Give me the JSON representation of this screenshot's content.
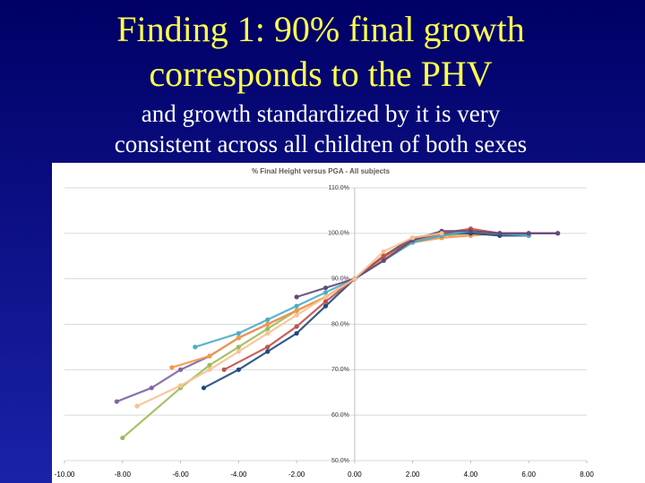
{
  "slide": {
    "title": [
      "Finding 1: 90% final growth",
      "corresponds to the PHV"
    ],
    "subtitle": [
      "and growth standardized by it is very",
      "consistent across all children of both sexes"
    ]
  },
  "chart_data": {
    "type": "line",
    "title": "% Final Height versus PGA - All subjects",
    "xlim": [
      -10,
      8
    ],
    "xticks": [
      {
        "value": -10,
        "label": "-10.00"
      },
      {
        "value": -8,
        "label": "-8.00"
      },
      {
        "value": -6,
        "label": "-6.00"
      },
      {
        "value": -4,
        "label": "-4.00"
      },
      {
        "value": -2,
        "label": "-2.00"
      },
      {
        "value": 0,
        "label": "0.00"
      },
      {
        "value": 2,
        "label": "2.00"
      },
      {
        "value": 4,
        "label": "4.00"
      },
      {
        "value": 6,
        "label": "6.00"
      },
      {
        "value": 8,
        "label": "8.00"
      }
    ],
    "ylim": [
      50,
      110
    ],
    "yticks": [
      {
        "value": 50,
        "label": "50.0%"
      },
      {
        "value": 60,
        "label": "60.0%"
      },
      {
        "value": 70,
        "label": "70.0%"
      },
      {
        "value": 80,
        "label": "80.0%"
      },
      {
        "value": 90,
        "label": "90.0%"
      },
      {
        "value": 100,
        "label": "100.0%"
      },
      {
        "value": 110,
        "label": "110.0%"
      }
    ],
    "grid": true,
    "series": [
      {
        "color": "#8064a2",
        "x": [
          -8.2,
          -7,
          -6,
          -5,
          -4,
          -3,
          -2,
          -1,
          0,
          1,
          2,
          3,
          4,
          5,
          6,
          7
        ],
        "values": [
          63,
          66,
          70,
          73,
          77,
          80,
          83,
          86,
          90,
          95,
          98,
          99.5,
          100,
          100,
          100,
          100
        ]
      },
      {
        "color": "#9bbb59",
        "x": [
          -8,
          -6,
          -5,
          -4,
          -3,
          -2,
          -1,
          0,
          1,
          2,
          3,
          4,
          5
        ],
        "values": [
          55,
          66,
          71,
          75,
          79,
          83,
          86,
          90,
          95,
          98.5,
          99.5,
          100,
          100
        ]
      },
      {
        "color": "#f79646",
        "x": [
          -6.3,
          -5,
          -4,
          -3,
          -2,
          -1,
          0,
          1,
          2,
          3,
          4,
          5,
          6
        ],
        "values": [
          70.5,
          73,
          77,
          80,
          83,
          86,
          90,
          94.5,
          98,
          99,
          99.5,
          100,
          100
        ]
      },
      {
        "color": "#1f497d",
        "x": [
          -5.2,
          -4,
          -3,
          -2,
          -1,
          0,
          1,
          2,
          3,
          4,
          5,
          6
        ],
        "values": [
          66,
          70,
          74,
          78,
          84,
          90,
          95,
          99,
          100,
          100,
          99.5,
          99.5
        ]
      },
      {
        "color": "#4bacc6",
        "x": [
          -5.5,
          -4,
          -3,
          -2,
          -1,
          0,
          1,
          2,
          3,
          4,
          5,
          6
        ],
        "values": [
          75,
          78,
          81,
          84,
          87,
          90,
          94,
          98,
          99.5,
          100.5,
          100,
          99.5
        ]
      },
      {
        "color": "#c0504d",
        "x": [
          -4.5,
          -3,
          -2,
          -1,
          0,
          1,
          2,
          3,
          4,
          5,
          6,
          7
        ],
        "values": [
          70,
          75,
          79.5,
          85,
          90,
          95,
          98.5,
          100,
          101,
          100,
          100,
          100
        ]
      },
      {
        "color": "#604a7b",
        "x": [
          -2,
          -1,
          0,
          1,
          2,
          3,
          4,
          5,
          6,
          7
        ],
        "values": [
          86,
          88,
          90,
          94,
          98.5,
          100.5,
          100.5,
          100,
          100,
          100
        ]
      },
      {
        "color": "#fac090",
        "x": [
          -7.5,
          -6,
          -5,
          -4,
          -3,
          -2,
          -1,
          0,
          1,
          2,
          3
        ],
        "values": [
          62,
          66.5,
          70,
          74,
          78,
          82,
          86,
          90,
          96,
          99,
          100
        ]
      }
    ]
  }
}
